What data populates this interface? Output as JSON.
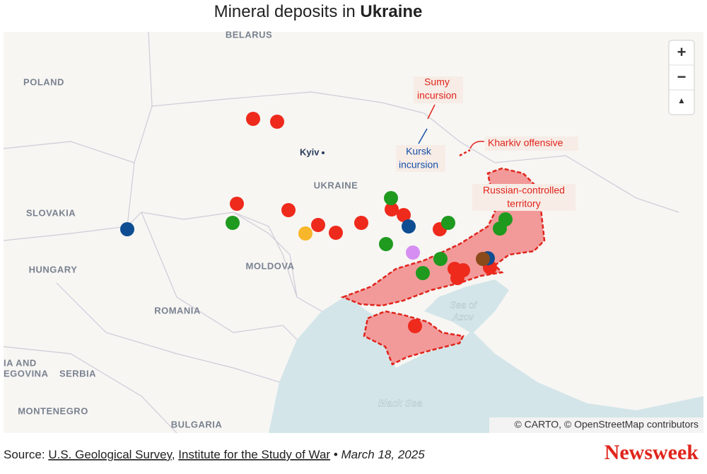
{
  "title": {
    "text": "Mineral deposits in",
    "bold": "Ukraine"
  },
  "map": {
    "countries": [
      "BELARUS",
      "POLAND",
      "SLOVAKIA",
      "HUNGARY",
      "ROMANIA",
      "MOLDOVA",
      "UKRAINE",
      "SERBIA",
      "MONTENEGRO",
      "BULGARIA",
      "IA AND",
      "EGOVINA"
    ],
    "city": "Kyiv",
    "water": [
      "Sea of",
      "Azov",
      "Black Sea"
    ],
    "annotations": {
      "sumy": [
        "Sumy",
        "incursion"
      ],
      "kursk": [
        "Kursk",
        "incursion"
      ],
      "kharkiv": "Kharkiv offensive",
      "russian": [
        "Russian-controlled",
        "territory"
      ]
    },
    "controls": [
      "+",
      "−",
      "▲"
    ],
    "attribution": "© CARTO, © OpenStreetMap contributors"
  },
  "footer": {
    "source_label": "Source:",
    "sources": [
      "U.S. Geological Survey",
      "Institute for the Study of War"
    ],
    "separator": ",",
    "bullet": "•",
    "date": "March 18, 2025",
    "logo": "Newsweek"
  }
}
